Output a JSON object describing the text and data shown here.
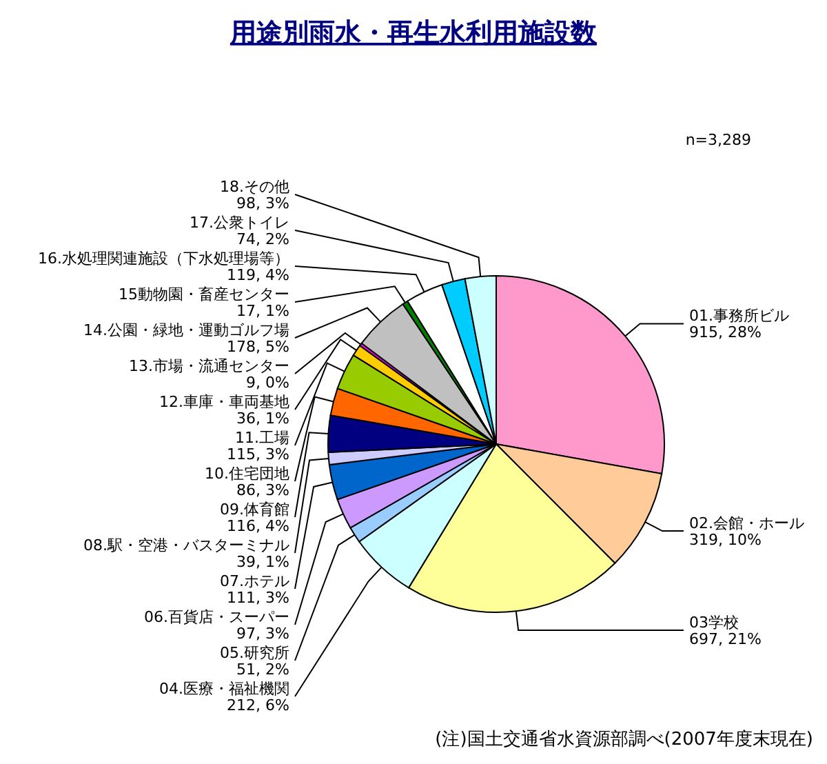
{
  "chart_data": {
    "type": "pie",
    "title": "用途別雨水・再生水利用施設数",
    "categories": [
      "01.事務所ビル",
      "02.会館・ホール",
      "03学校",
      "04.医療・福祉機関",
      "05.研究所",
      "06.百貨店・スーパー",
      "07.ホテル",
      "08.駅・空港・バスターミナル",
      "09.体育館",
      "10.住宅団地",
      "11.工場",
      "12.車庫・車両基地",
      "13.市場・流通センター",
      "14.公園・緑地・運動ゴルフ場",
      "15動物園・畜産センター",
      "16.水処理関連施設（下水処理場等）",
      "17.公衆トイレ",
      "18.その他"
    ],
    "values": [
      915,
      319,
      697,
      212,
      51,
      97,
      111,
      39,
      116,
      86,
      115,
      36,
      9,
      178,
      17,
      119,
      74,
      98
    ],
    "value_labels": [
      "915, 28%",
      "319, 10%",
      "697, 21%",
      "212, 6%",
      "51, 2%",
      "97, 3%",
      "111, 3%",
      "39, 1%",
      "116, 4%",
      "86, 3%",
      "115, 3%",
      "36, 1%",
      "9, 0%",
      "178, 5%",
      "17, 1%",
      "119, 4%",
      "74, 2%",
      "98, 3%"
    ],
    "colors": [
      "#ff99cc",
      "#ffcc99",
      "#ffff99",
      "#ccffff",
      "#99ccff",
      "#cc99ff",
      "#0066cc",
      "#ccccff",
      "#000080",
      "#ff6600",
      "#99cc00",
      "#ffcc00",
      "#ff00ff",
      "#c0c0c0",
      "#008000",
      "#ffffff",
      "#00ccff",
      "#ccffff"
    ],
    "annotations": [
      "n=3,289",
      "(注)国土交通省水資源部調べ(2007年度末現在)"
    ]
  }
}
